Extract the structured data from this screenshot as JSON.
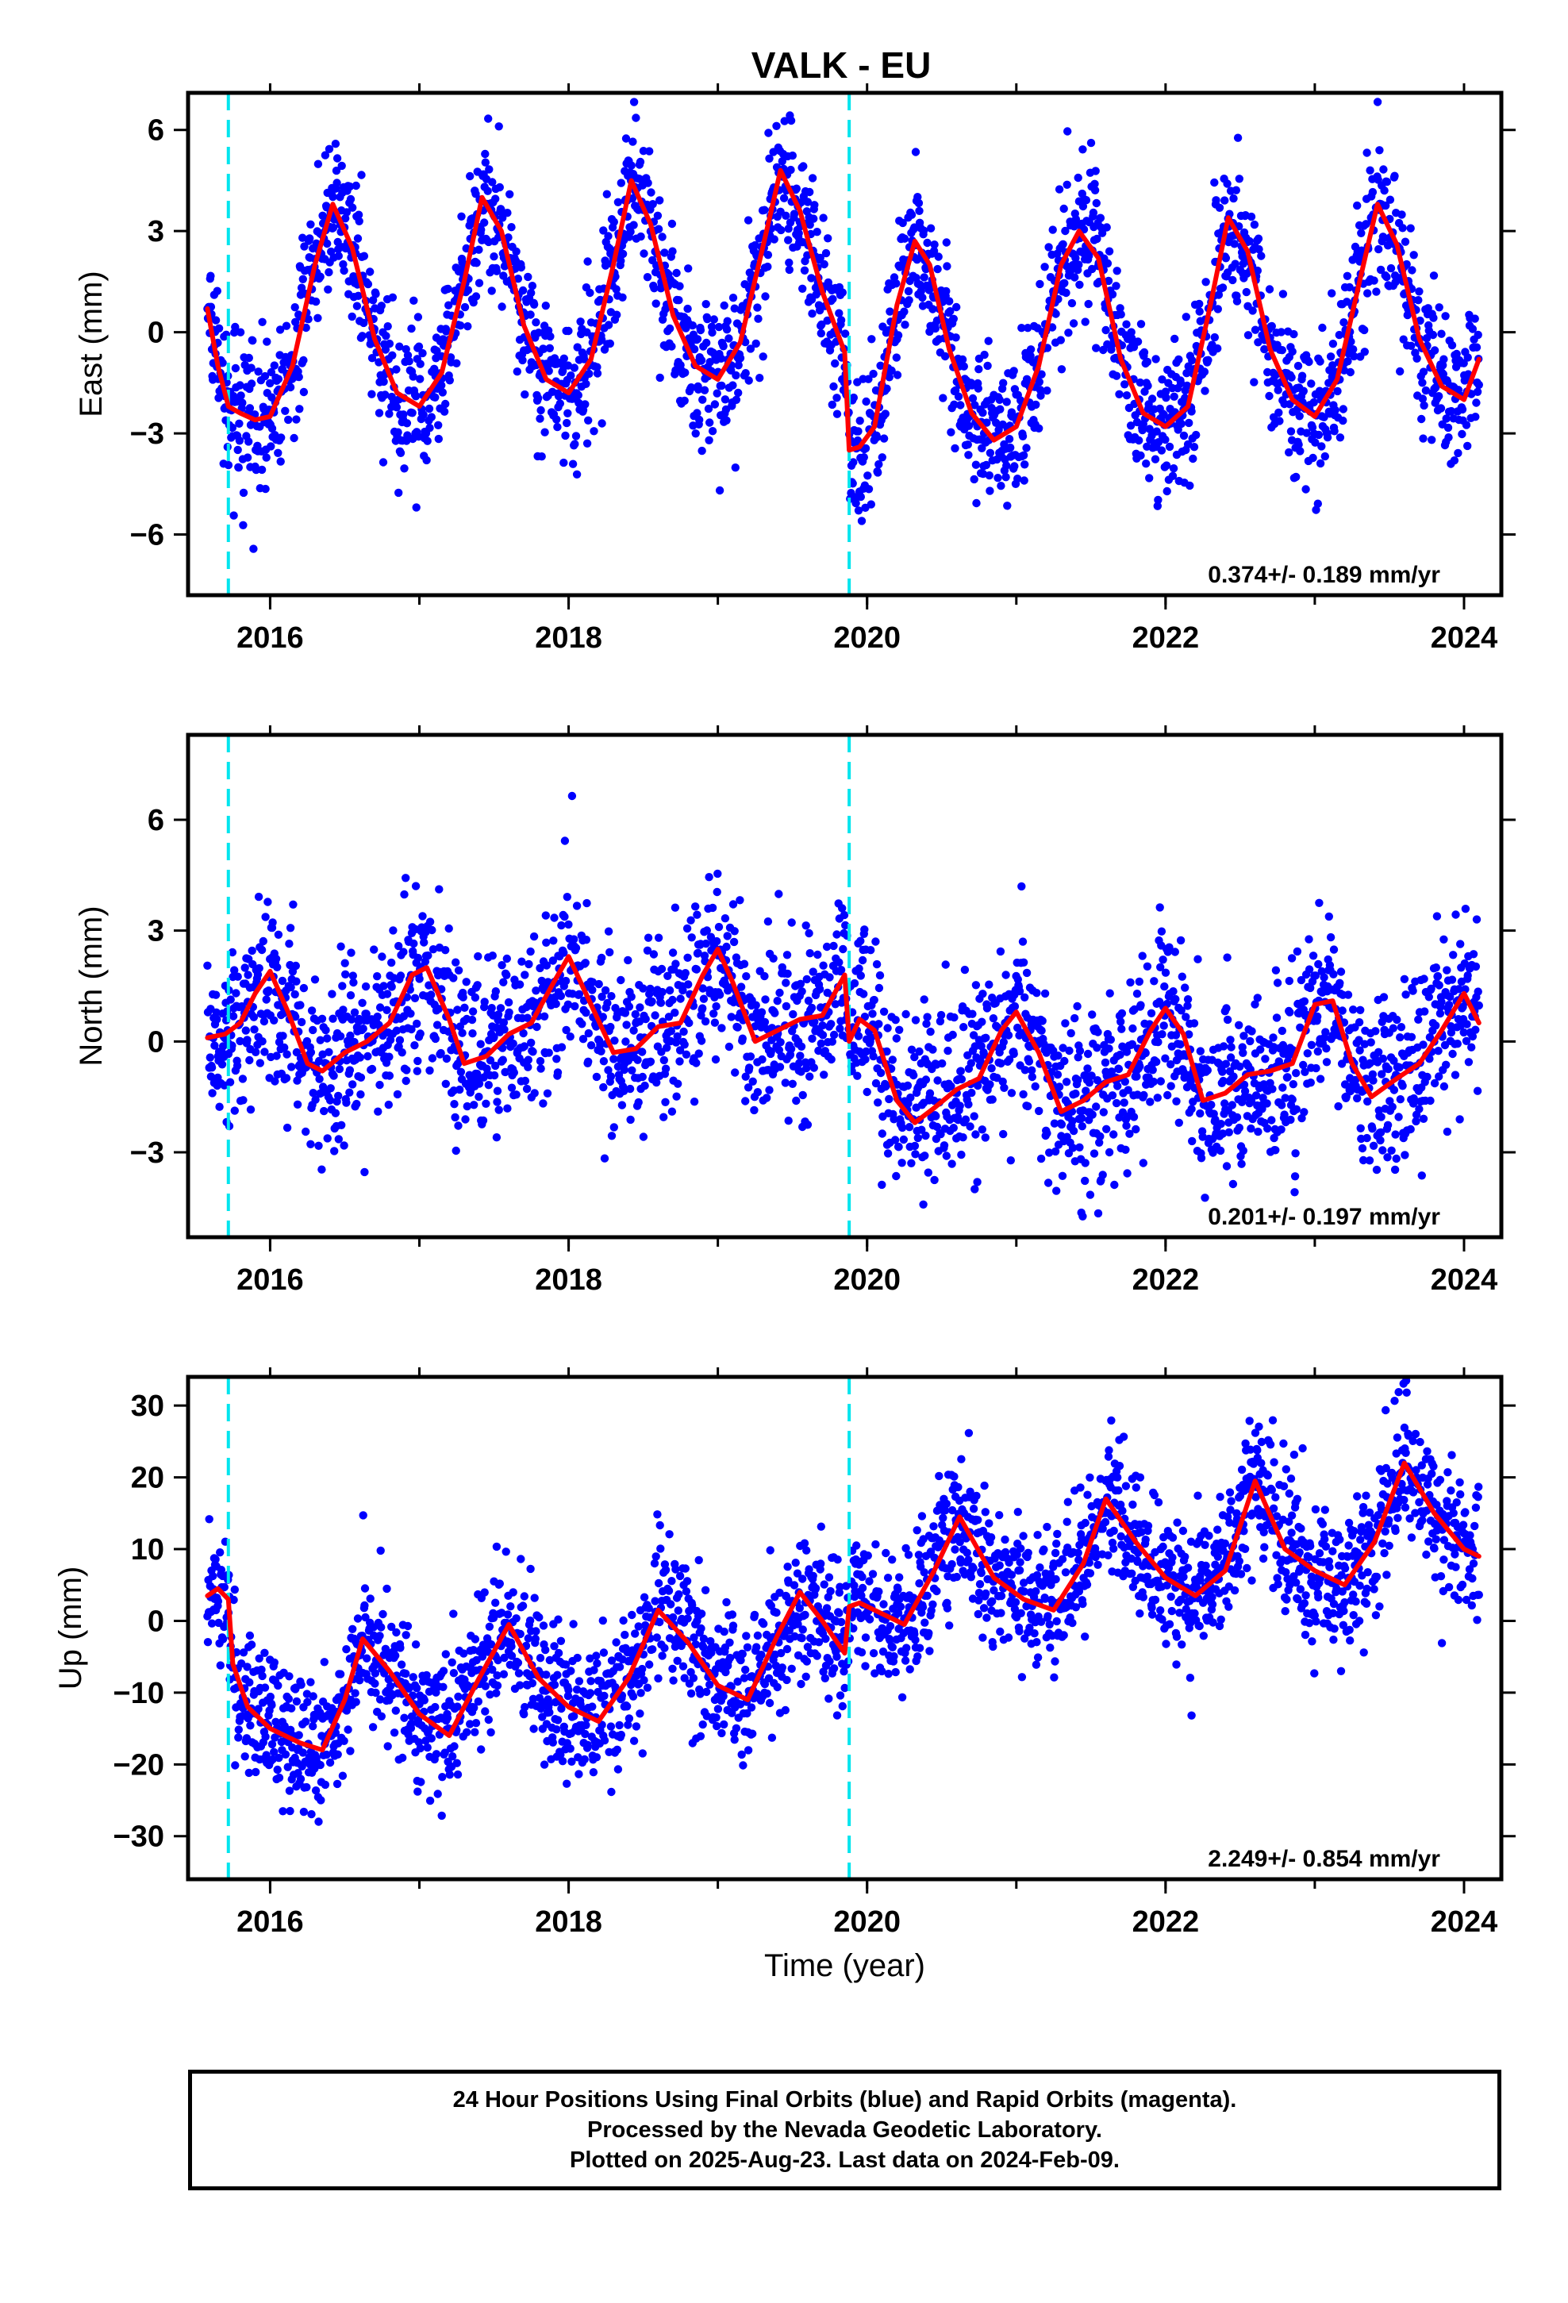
{
  "title": "VALK - EU",
  "colors": {
    "final_orbits": "#0000ff",
    "model_fit": "#ff0000",
    "equipment_change": "#00e5ee",
    "axes": "#000000"
  },
  "chart_data": [
    {
      "type": "scatter",
      "panel": "east",
      "ylabel": "East (mm)",
      "xlabel": "",
      "xlim": [
        2015.45,
        2024.25
      ],
      "ylim": [
        -7.8,
        7.1
      ],
      "xticks": [
        2016,
        2018,
        2020,
        2022,
        2024
      ],
      "yticks": [
        6,
        3,
        0,
        -3,
        -6
      ],
      "ytick_labels": [
        "6",
        "3",
        "0",
        "−3",
        "−6"
      ],
      "rate_label": "0.374+/- 0.189 mm/yr",
      "rate_mm_per_yr": 0.374,
      "rate_sigma": 0.189,
      "equipment_changes": [
        2015.72,
        2019.88
      ],
      "series": [
        {
          "name": "24 Hour Positions (Final Orbits)",
          "role": "points",
          "style": "dots",
          "mean_annual": [
            [
              2016,
              0.1
            ],
            [
              2017,
              0.6
            ],
            [
              2018,
              1.2
            ],
            [
              2019,
              1.6
            ],
            [
              2020,
              0.1
            ],
            [
              2021,
              0.2
            ],
            [
              2022,
              0.6
            ],
            [
              2023,
              1.0
            ]
          ],
          "annual_amplitude": 3.1,
          "annual_peak_phase": 0.42,
          "scatter_sd": 1.1,
          "n": 2850
        },
        {
          "name": "Model fit",
          "role": "fit",
          "style": "line",
          "x": [
            2015.58,
            2015.65,
            2015.72,
            2015.8,
            2015.9,
            2016.0,
            2016.15,
            2016.3,
            2016.42,
            2016.55,
            2016.7,
            2016.85,
            2017.0,
            2017.15,
            2017.3,
            2017.42,
            2017.55,
            2017.7,
            2017.85,
            2018.0,
            2018.15,
            2018.3,
            2018.42,
            2018.55,
            2018.7,
            2018.85,
            2019.0,
            2019.15,
            2019.3,
            2019.42,
            2019.55,
            2019.7,
            2019.85,
            2019.88,
            2019.95,
            2020.05,
            2020.2,
            2020.32,
            2020.42,
            2020.55,
            2020.7,
            2020.85,
            2021.0,
            2021.15,
            2021.3,
            2021.42,
            2021.55,
            2021.7,
            2021.85,
            2022.0,
            2022.15,
            2022.3,
            2022.42,
            2022.55,
            2022.7,
            2022.85,
            2023.0,
            2023.15,
            2023.3,
            2023.42,
            2023.55,
            2023.7,
            2023.85,
            2024.0,
            2024.1
          ],
          "y": [
            0.7,
            -1.0,
            -2.2,
            -2.4,
            -2.6,
            -2.5,
            -1.0,
            2.0,
            3.8,
            2.5,
            -0.2,
            -1.8,
            -2.2,
            -1.2,
            1.5,
            4.0,
            3.0,
            0.2,
            -1.4,
            -1.8,
            -0.8,
            2.0,
            4.5,
            3.2,
            0.5,
            -1.0,
            -1.4,
            -0.3,
            2.5,
            4.8,
            3.6,
            1.2,
            -0.6,
            -3.5,
            -3.4,
            -2.8,
            0.8,
            2.7,
            2.0,
            -0.5,
            -2.4,
            -3.2,
            -2.8,
            -1.0,
            2.0,
            3.0,
            2.2,
            -0.8,
            -2.4,
            -2.8,
            -2.2,
            0.8,
            3.4,
            2.4,
            -0.5,
            -2.0,
            -2.5,
            -1.4,
            1.5,
            3.8,
            2.6,
            -0.2,
            -1.6,
            -2.0,
            -0.8
          ]
        }
      ]
    },
    {
      "type": "scatter",
      "panel": "north",
      "ylabel": "North (mm)",
      "xlabel": "",
      "xlim": [
        2015.45,
        2024.25
      ],
      "ylim": [
        -5.3,
        8.3
      ],
      "xticks": [
        2016,
        2018,
        2020,
        2022,
        2024
      ],
      "yticks": [
        6,
        3,
        0,
        -3
      ],
      "ytick_labels": [
        "6",
        "3",
        "0",
        "−3"
      ],
      "rate_label": "0.201+/- 0.197 mm/yr",
      "rate_mm_per_yr": 0.201,
      "rate_sigma": 0.197,
      "equipment_changes": [
        2015.72,
        2019.88
      ],
      "series": [
        {
          "name": "24 Hour Positions (Final Orbits)",
          "role": "points",
          "style": "dots",
          "mean_annual": [
            [
              2016,
              0.3
            ],
            [
              2017,
              0.6
            ],
            [
              2018,
              0.9
            ],
            [
              2019,
              1.3
            ],
            [
              2020,
              -0.5
            ],
            [
              2021,
              -0.4
            ],
            [
              2022,
              -0.2
            ],
            [
              2023,
              0.0
            ]
          ],
          "annual_amplitude": 1.1,
          "annual_peak_phase": 0.98,
          "scatter_sd": 1.2,
          "n": 2850
        },
        {
          "name": "Model fit",
          "role": "fit",
          "style": "line",
          "x": [
            2015.58,
            2015.7,
            2015.8,
            2015.9,
            2016.0,
            2016.12,
            2016.25,
            2016.35,
            2016.5,
            2016.65,
            2016.8,
            2016.95,
            2017.05,
            2017.2,
            2017.3,
            2017.45,
            2017.6,
            2017.75,
            2017.9,
            2018.0,
            2018.15,
            2018.3,
            2018.45,
            2018.6,
            2018.75,
            2018.9,
            2019.0,
            2019.1,
            2019.25,
            2019.4,
            2019.55,
            2019.7,
            2019.85,
            2019.88,
            2019.95,
            2020.05,
            2020.2,
            2020.32,
            2020.45,
            2020.6,
            2020.75,
            2020.9,
            2021.0,
            2021.15,
            2021.3,
            2021.45,
            2021.6,
            2021.75,
            2021.9,
            2022.0,
            2022.12,
            2022.25,
            2022.4,
            2022.55,
            2022.7,
            2022.85,
            2023.0,
            2023.12,
            2023.25,
            2023.38,
            2023.55,
            2023.7,
            2023.85,
            2024.0,
            2024.1
          ],
          "y": [
            0.1,
            0.2,
            0.5,
            1.3,
            1.9,
            0.8,
            -0.6,
            -0.8,
            -0.3,
            0.0,
            0.5,
            1.8,
            2.0,
            0.6,
            -0.6,
            -0.4,
            0.2,
            0.5,
            1.6,
            2.3,
            1.0,
            -0.3,
            -0.2,
            0.4,
            0.5,
            1.8,
            2.5,
            1.6,
            0.0,
            0.3,
            0.6,
            0.7,
            1.8,
            0.0,
            0.6,
            0.3,
            -1.6,
            -2.2,
            -1.8,
            -1.3,
            -1.0,
            0.3,
            0.8,
            -0.3,
            -1.9,
            -1.6,
            -1.1,
            -0.9,
            0.3,
            0.9,
            0.2,
            -1.6,
            -1.4,
            -0.9,
            -0.8,
            -0.6,
            1.0,
            1.1,
            -0.6,
            -1.5,
            -1.0,
            -0.6,
            0.3,
            1.3,
            0.5
          ]
        }
      ]
    },
    {
      "type": "scatter",
      "panel": "up",
      "ylabel": "Up (mm)",
      "xlabel": "Time (year)",
      "xlim": [
        2015.45,
        2024.25
      ],
      "ylim": [
        -36,
        34
      ],
      "xticks": [
        2016,
        2018,
        2020,
        2022,
        2024
      ],
      "yticks": [
        30,
        20,
        10,
        0,
        -10,
        -20,
        -30
      ],
      "ytick_labels": [
        "30",
        "20",
        "10",
        "0",
        "−10",
        "−20",
        "−30"
      ],
      "rate_label": "2.249+/- 0.854 mm/yr",
      "rate_mm_per_yr": 2.249,
      "rate_sigma": 0.854,
      "equipment_changes": [
        2015.72,
        2019.88
      ],
      "series": [
        {
          "name": "24 Hour Positions (Final Orbits)",
          "role": "points",
          "style": "dots",
          "mean_annual": [
            [
              2016,
              -12
            ],
            [
              2017,
              -8
            ],
            [
              2018,
              -6
            ],
            [
              2019,
              -4
            ],
            [
              2020,
              5
            ],
            [
              2021,
              8
            ],
            [
              2022,
              10
            ],
            [
              2023,
              12
            ]
          ],
          "annual_amplitude": 7,
          "annual_peak_phase": 0.6,
          "scatter_sd": 5,
          "n": 2850
        },
        {
          "name": "Model fit",
          "role": "fit",
          "style": "line",
          "x": [
            2015.58,
            2015.65,
            2015.72,
            2015.75,
            2015.85,
            2016.0,
            2016.2,
            2016.35,
            2016.5,
            2016.62,
            2016.8,
            2017.0,
            2017.2,
            2017.4,
            2017.6,
            2017.8,
            2018.0,
            2018.2,
            2018.4,
            2018.6,
            2018.8,
            2019.0,
            2019.2,
            2019.4,
            2019.55,
            2019.7,
            2019.85,
            2019.88,
            2019.95,
            2020.1,
            2020.25,
            2020.45,
            2020.62,
            2020.85,
            2021.05,
            2021.25,
            2021.45,
            2021.6,
            2021.8,
            2022.0,
            2022.2,
            2022.4,
            2022.6,
            2022.8,
            2023.0,
            2023.2,
            2023.4,
            2023.6,
            2023.8,
            2024.0,
            2024.1
          ],
          "y": [
            3.5,
            4.5,
            3.0,
            -6.0,
            -12.0,
            -15.0,
            -17.0,
            -18.0,
            -11.0,
            -2.5,
            -7.0,
            -13.0,
            -16.0,
            -8.0,
            -0.5,
            -8.0,
            -12.0,
            -14.0,
            -8.0,
            1.5,
            -3.0,
            -9.0,
            -11.0,
            -2.0,
            4.0,
            0.0,
            -4.5,
            2.0,
            2.5,
            1.0,
            -0.5,
            7.0,
            14.5,
            6.0,
            3.0,
            1.5,
            8.0,
            17.0,
            11.0,
            6.0,
            3.5,
            7.0,
            19.5,
            10.0,
            7.0,
            5.0,
            11.0,
            22.0,
            15.0,
            10.0,
            9.0
          ]
        }
      ]
    }
  ],
  "footer": {
    "line1": "24 Hour Positions Using Final Orbits (blue) and Rapid Orbits (magenta).",
    "line2": "Processed by the Nevada Geodetic Laboratory.",
    "line3": "Plotted on 2025-Aug-23. Last data on 2024-Feb-09."
  }
}
